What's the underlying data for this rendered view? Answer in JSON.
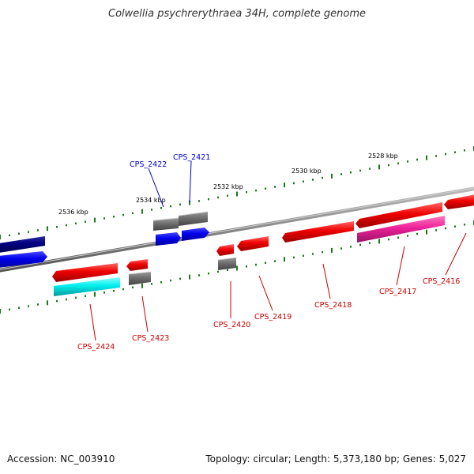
{
  "title": "Colwellia psychrerythraea 34H, complete genome",
  "footer": {
    "accession": "Accession: NC_003910",
    "summary": "Topology: circular; Length: 5,373,180 bp; Genes: 5,027"
  },
  "colors": {
    "backbone": "#888888",
    "tick": "#1a7a1a",
    "red_gene": "#ee0000",
    "gray_gene": "#6d6d6d",
    "blue_gene": "#0000ee",
    "navy_gene": "#000080",
    "cyan_gene": "#00eeee",
    "magenta_gene": "#ee2299",
    "red_label": "#cc0000",
    "blue_label": "#0000cc"
  },
  "scale_labels": [
    "2536 kbp",
    "2534 kbp",
    "2532 kbp",
    "2530 kbp",
    "2528 kbp"
  ],
  "gene_labels": [
    {
      "text": "CPS_2422",
      "color": "blue"
    },
    {
      "text": "CPS_2421",
      "color": "blue"
    },
    {
      "text": "CPS_2424",
      "color": "red"
    },
    {
      "text": "CPS_2423",
      "color": "red"
    },
    {
      "text": "CPS_2420",
      "color": "red"
    },
    {
      "text": "CPS_2419",
      "color": "red"
    },
    {
      "text": "CPS_2418",
      "color": "red"
    },
    {
      "text": "CPS_2417",
      "color": "red"
    },
    {
      "text": "CPS_2416",
      "color": "red"
    }
  ]
}
